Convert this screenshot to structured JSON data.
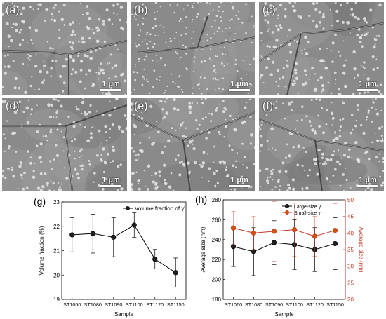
{
  "panels": [
    {
      "label": "(a)",
      "scale": "1 μm"
    },
    {
      "label": "(b)",
      "scale": "1 μm"
    },
    {
      "label": "(c)",
      "scale": "1 μm"
    },
    {
      "label": "(d)",
      "scale": "1 μm"
    },
    {
      "label": "(e)",
      "scale": "1 μm"
    },
    {
      "label": "(f)",
      "scale": "1 μm"
    }
  ],
  "chart_data": [
    {
      "type": "line",
      "panel_label": "(g)",
      "categories": [
        "ST1060",
        "ST1080",
        "ST1090",
        "ST1100",
        "ST1120",
        "ST1150"
      ],
      "series": [
        {
          "name": "Volume fraction of γ'",
          "values": [
            21.65,
            21.7,
            21.55,
            22.05,
            20.65,
            20.1
          ],
          "error": [
            0.7,
            0.8,
            0.8,
            0.5,
            0.4,
            0.6
          ],
          "color": "#000000"
        }
      ],
      "xlabel": "Sample",
      "ylabel": "Volume fraction (%)",
      "ylim": [
        19,
        23
      ],
      "yticks": [
        19,
        20,
        21,
        22,
        23
      ],
      "legend": "top-right",
      "grid": false
    },
    {
      "type": "line",
      "panel_label": "(h)",
      "categories": [
        "ST1060",
        "ST1080",
        "ST1090",
        "ST1100",
        "ST1120",
        "ST1150"
      ],
      "series": [
        {
          "name": "Large-size γ'",
          "axis": "left",
          "values": [
            233,
            228,
            237,
            235,
            230,
            236
          ],
          "error": [
            20,
            24,
            22,
            25,
            22,
            26
          ],
          "color": "#000000"
        },
        {
          "name": "Small-size γ'",
          "axis": "right",
          "values": [
            41.5,
            40,
            40.5,
            41,
            39,
            40.8
          ],
          "error": [
            5,
            5,
            9,
            8,
            6,
            8
          ],
          "color": "#c0392b"
        }
      ],
      "xlabel": "Sample",
      "ylabel": "Average size (nm)",
      "ylabel_right": "Average size (nm)",
      "ylim": [
        180,
        280
      ],
      "yticks": [
        180,
        200,
        220,
        240,
        260,
        280
      ],
      "ylim_right": [
        20,
        50
      ],
      "yticks_right": [
        20,
        25,
        30,
        35,
        40,
        45,
        50
      ],
      "legend": "top-right",
      "grid": false
    }
  ]
}
